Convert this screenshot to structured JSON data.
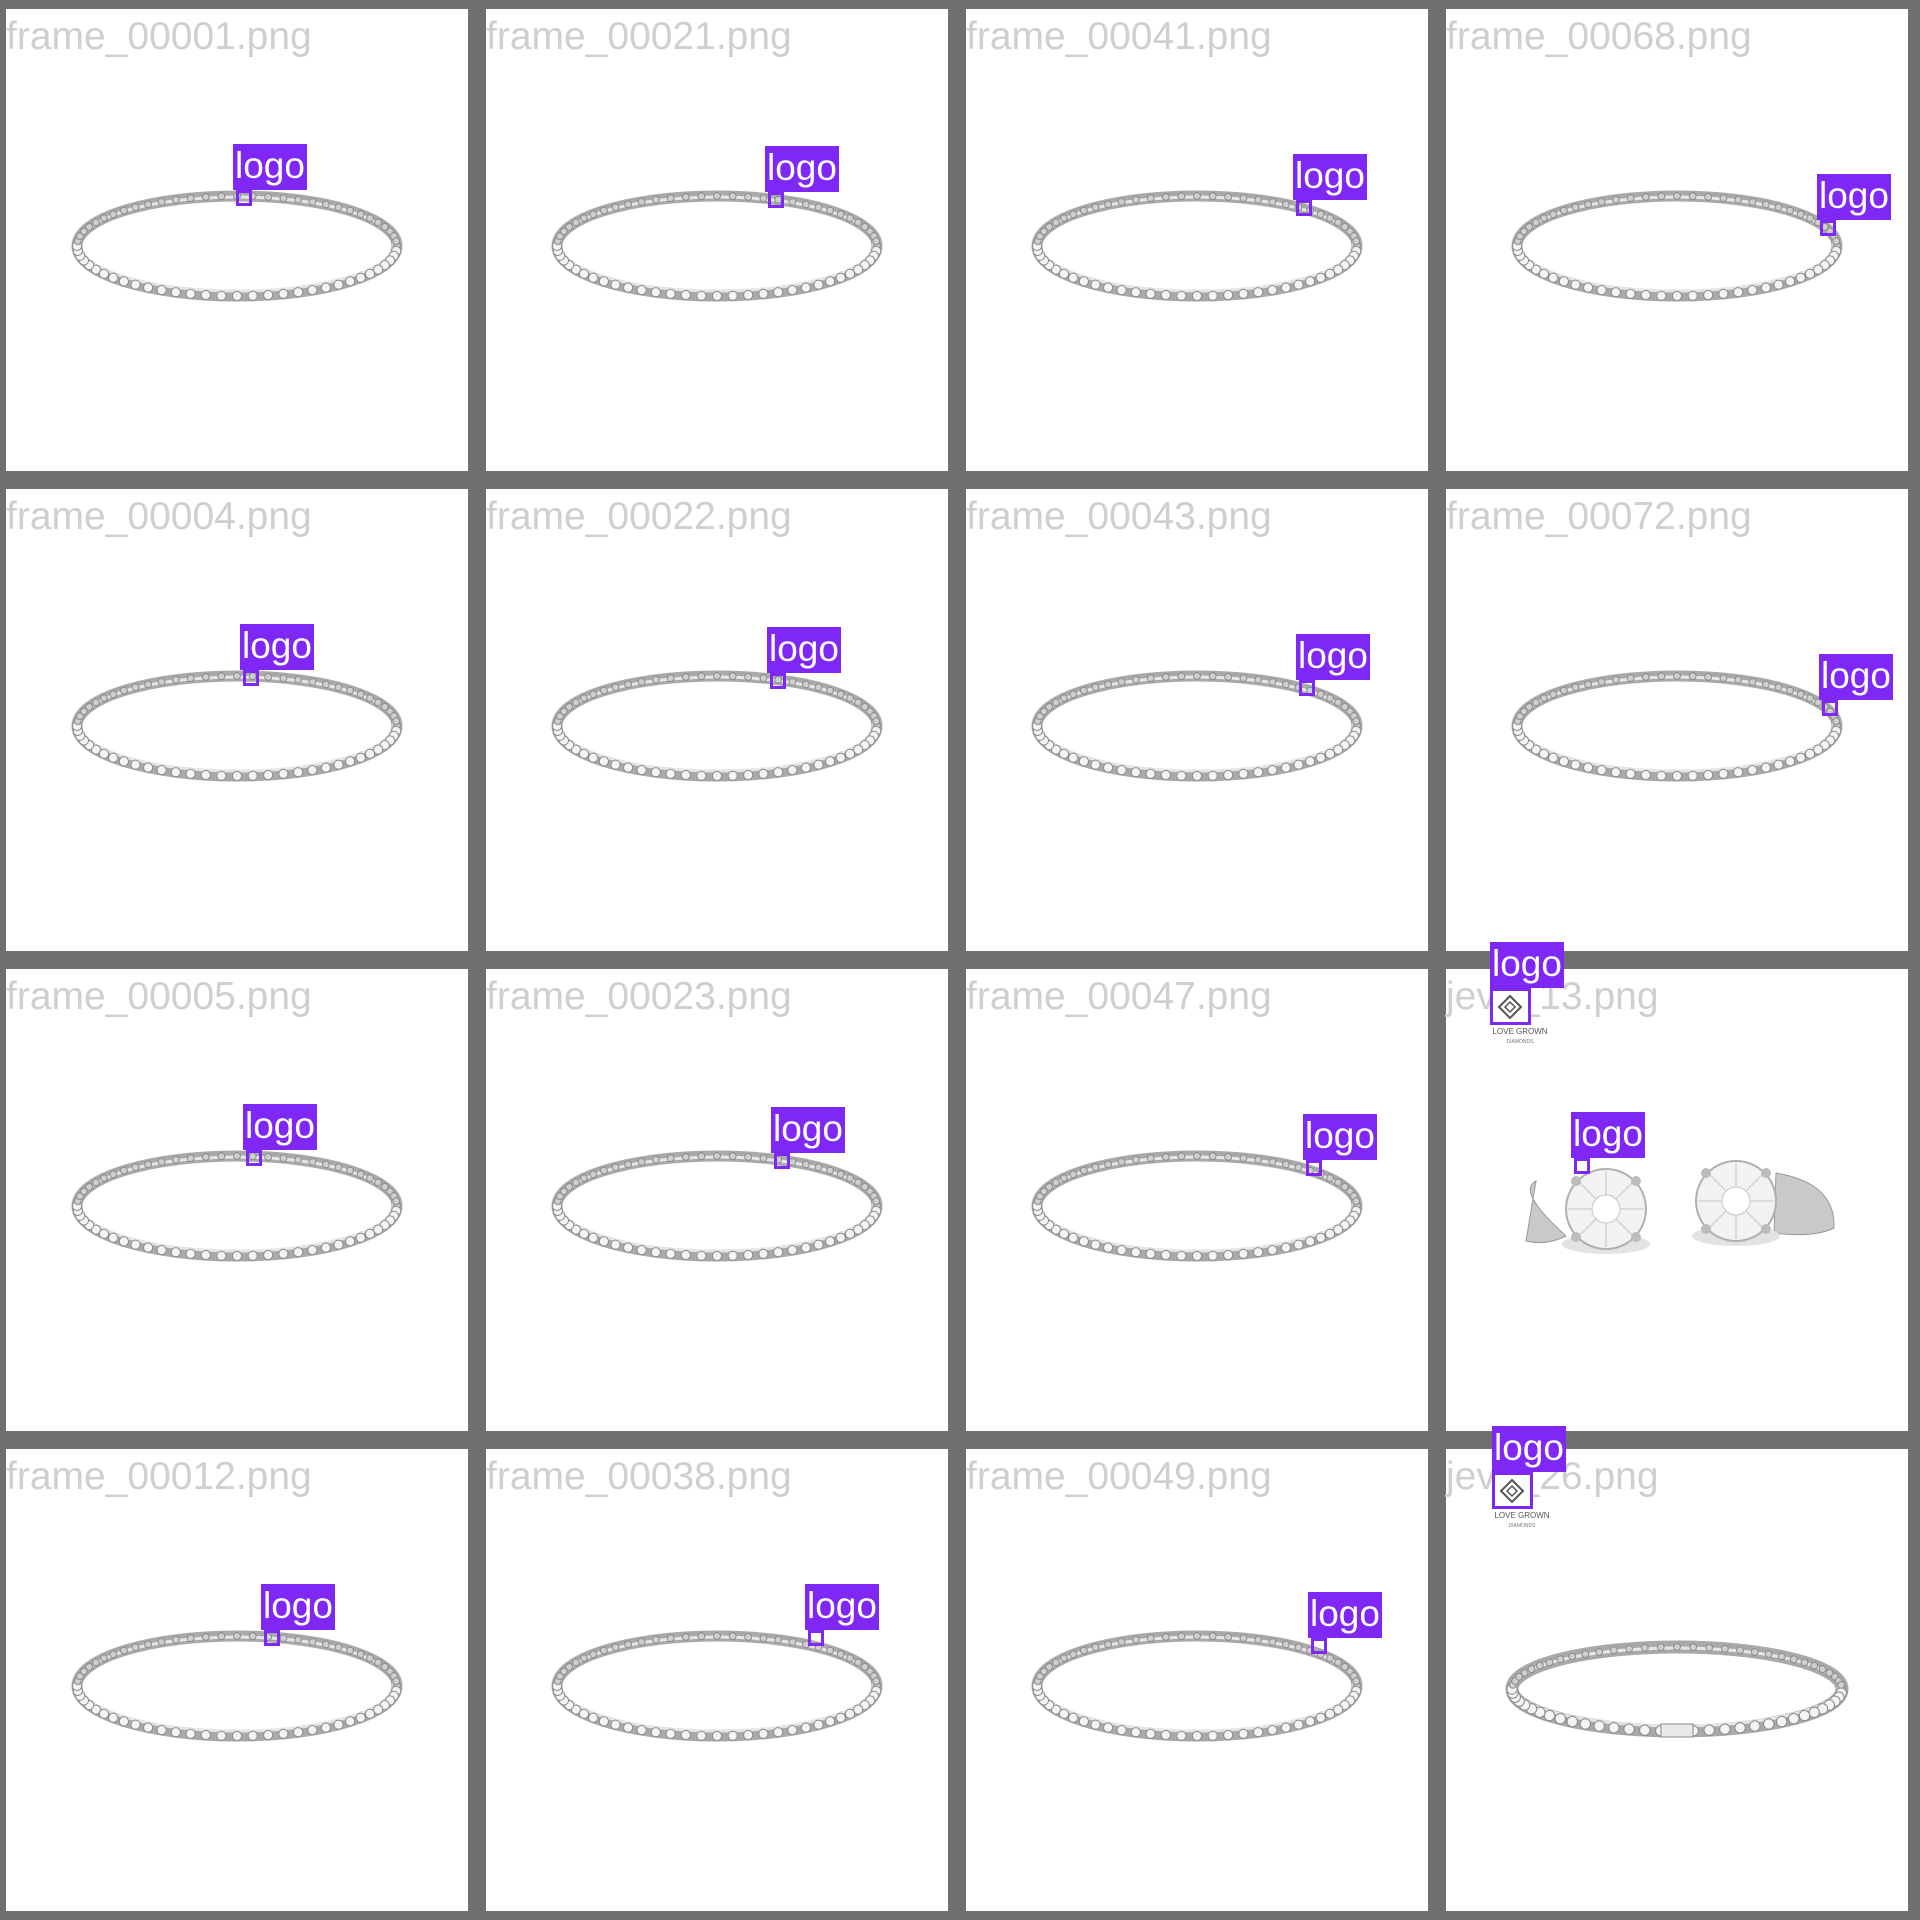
{
  "detection_color": "#7f27f5",
  "tiles": [
    {
      "filename": "frame_00001.png",
      "product": "bracelet",
      "detection": {
        "label": "logo"
      }
    },
    {
      "filename": "frame_00021.png",
      "product": "bracelet",
      "detection": {
        "label": "logo"
      }
    },
    {
      "filename": "frame_00041.png",
      "product": "bracelet",
      "detection": {
        "label": "logo"
      }
    },
    {
      "filename": "frame_00068.png",
      "product": "bracelet",
      "detection": {
        "label": "logo"
      }
    },
    {
      "filename": "frame_00004.png",
      "product": "bracelet",
      "detection": {
        "label": "logo"
      }
    },
    {
      "filename": "frame_00022.png",
      "product": "bracelet",
      "detection": {
        "label": "logo"
      }
    },
    {
      "filename": "frame_00043.png",
      "product": "bracelet",
      "detection": {
        "label": "logo"
      }
    },
    {
      "filename": "frame_00072.png",
      "product": "bracelet",
      "detection": {
        "label": "logo"
      }
    },
    {
      "filename": "frame_00005.png",
      "product": "bracelet",
      "detection": {
        "label": "logo"
      }
    },
    {
      "filename": "frame_00023.png",
      "product": "bracelet",
      "detection": {
        "label": "logo"
      }
    },
    {
      "filename": "frame_00047.png",
      "product": "bracelet",
      "detection": {
        "label": "logo"
      }
    },
    {
      "filename": "jev__13.png",
      "product": "earrings",
      "detection": {
        "label": "logo"
      },
      "brand_detection": {
        "label": "logo",
        "brand_text": "LOVE GROWN",
        "brand_subtext": "DIAMONDS"
      }
    },
    {
      "filename": "frame_00012.png",
      "product": "bracelet",
      "detection": {
        "label": "logo"
      }
    },
    {
      "filename": "frame_00038.png",
      "product": "bracelet",
      "detection": {
        "label": "logo"
      }
    },
    {
      "filename": "frame_00049.png",
      "product": "bracelet",
      "detection": {
        "label": "logo"
      }
    },
    {
      "filename": "jev__26.png",
      "product": "bracelet-flat",
      "brand_detection": {
        "label": "logo",
        "brand_text": "LOVE GROWN",
        "brand_subtext": "DIAMONDS"
      }
    }
  ]
}
